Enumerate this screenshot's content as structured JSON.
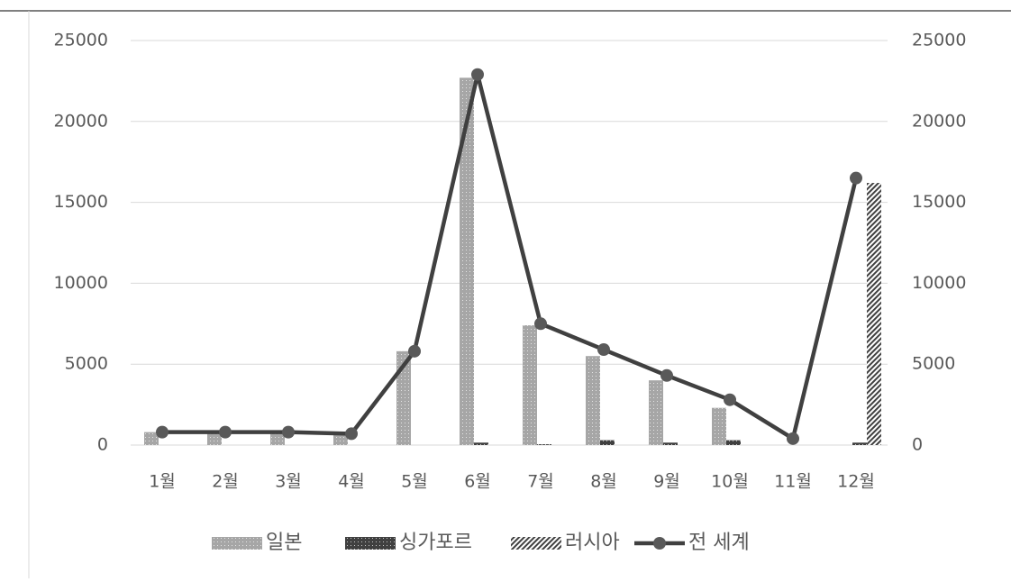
{
  "chart_data": {
    "type": "bar_line",
    "categories": [
      "1월",
      "2월",
      "3월",
      "4월",
      "5월",
      "6월",
      "7월",
      "8월",
      "9월",
      "10월",
      "11월",
      "12월"
    ],
    "series": [
      {
        "name": "일본",
        "type": "bar",
        "color": "#a6a6a6",
        "pattern": "dots",
        "values": [
          800,
          750,
          750,
          750,
          5800,
          22700,
          7400,
          5500,
          4000,
          2300,
          0,
          0
        ]
      },
      {
        "name": "싱가포르",
        "type": "bar",
        "color": "#404040",
        "pattern": "dots",
        "values": [
          0,
          0,
          0,
          0,
          0,
          150,
          50,
          300,
          150,
          300,
          0,
          150
        ]
      },
      {
        "name": "러시아",
        "type": "bar",
        "color": "#404040",
        "pattern": "hatch",
        "values": [
          0,
          0,
          0,
          0,
          0,
          0,
          0,
          0,
          0,
          0,
          0,
          16200
        ]
      },
      {
        "name": "전 세계",
        "type": "line",
        "axis": "y2",
        "color": "#404040",
        "values": [
          800,
          800,
          800,
          700,
          5800,
          22900,
          7500,
          5900,
          4300,
          2800,
          400,
          16500
        ]
      }
    ],
    "ylim": [
      0,
      25000
    ],
    "yticks": [
      0,
      5000,
      10000,
      15000,
      20000,
      25000
    ],
    "y2lim": [
      0,
      25000
    ],
    "y2ticks": [
      0,
      5000,
      10000,
      15000,
      20000,
      25000
    ],
    "grid": true,
    "legend": "bottom"
  }
}
